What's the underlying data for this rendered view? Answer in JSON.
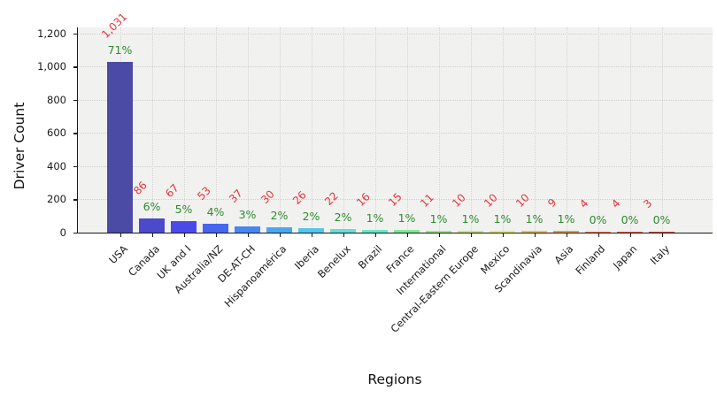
{
  "chart_data": {
    "type": "bar",
    "title": "",
    "xlabel": "Regions",
    "ylabel": "Driver Count",
    "categories": [
      "USA",
      "Canada",
      "UK and I",
      "Australia/NZ",
      "DE-AT-CH",
      "Hispanoamérica",
      "Iberia",
      "Benelux",
      "Brazil",
      "France",
      "International",
      "Central-Eastern Europe",
      "Mexico",
      "Scandinavia",
      "Asia",
      "Finland",
      "Japan",
      "Italy"
    ],
    "values": [
      1031,
      86,
      67,
      53,
      37,
      30,
      26,
      22,
      16,
      15,
      11,
      10,
      10,
      10,
      9,
      4,
      4,
      3
    ],
    "value_labels": [
      "1,031",
      "86",
      "67",
      "53",
      "37",
      "30",
      "26",
      "22",
      "16",
      "15",
      "11",
      "10",
      "10",
      "10",
      "9",
      "4",
      "4",
      "3"
    ],
    "pct_labels": [
      "71%",
      "6%",
      "5%",
      "4%",
      "3%",
      "2%",
      "2%",
      "2%",
      "1%",
      "1%",
      "1%",
      "1%",
      "1%",
      "1%",
      "1%",
      "0%",
      "0%",
      "0%"
    ],
    "bar_colors": [
      "#4b4ba5",
      "#4a4aca",
      "#4a4aeb",
      "#4566f0",
      "#4486f2",
      "#48a7f0",
      "#52c6ee",
      "#60e0da",
      "#66e8c4",
      "#7eea96",
      "#97ec7c",
      "#c0ee68",
      "#e6f05a",
      "#f2c153",
      "#f0974a",
      "#ee6a47",
      "#e85141",
      "#cf453c"
    ],
    "yticks": [
      0,
      200,
      400,
      600,
      800,
      1000,
      1200
    ],
    "ytick_labels": [
      "0",
      "200",
      "400",
      "600",
      "800",
      "1,000",
      "1,200"
    ],
    "ylim": [
      0,
      1237
    ],
    "grid": "dotted, horizontal at yticks and vertical at bar centers",
    "legend": "none",
    "plot_background": "#f1f1ef",
    "annotation_colors": {
      "value_labels": "#e3343c",
      "pct_labels": "#2e8b2e"
    }
  }
}
